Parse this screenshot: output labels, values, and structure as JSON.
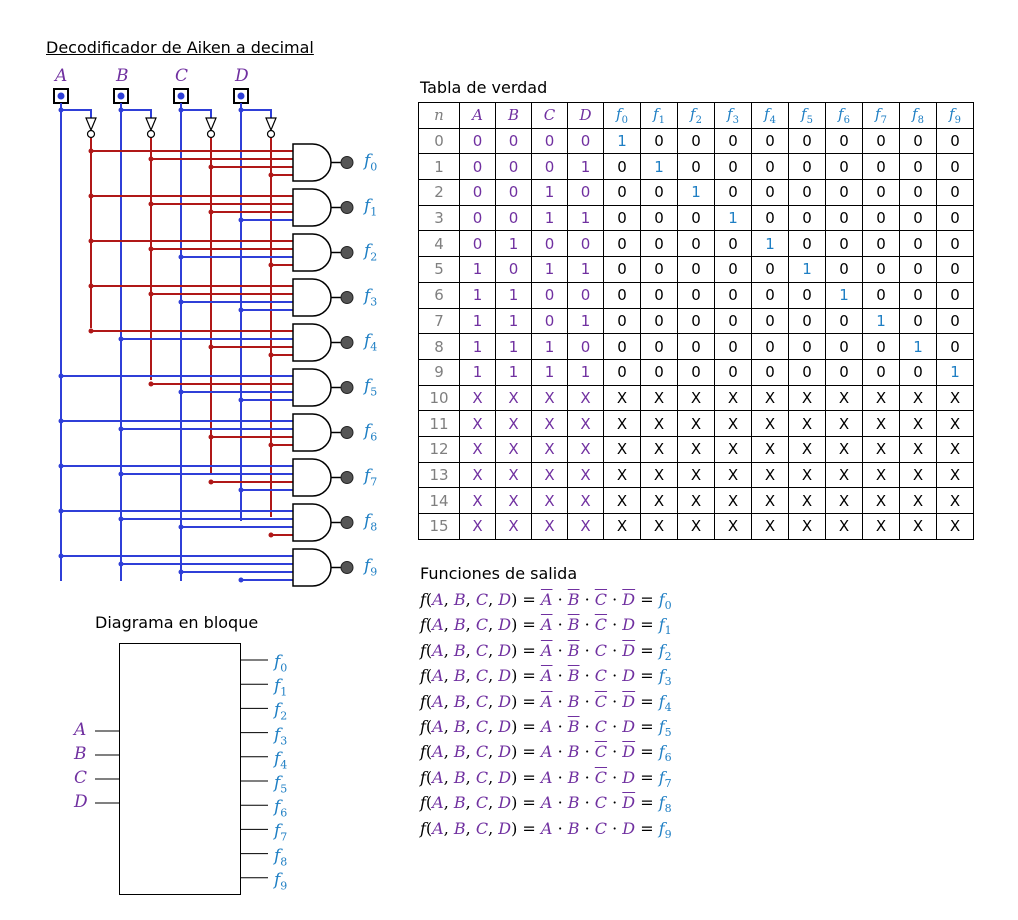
{
  "titles": {
    "circuit": "Decodificador de Aiken a decimal",
    "truth_table": "Tabla de verdad",
    "functions": "Funciones de salida",
    "block": "Diagrama en bloque"
  },
  "inputs": [
    "A",
    "B",
    "C",
    "D"
  ],
  "outputs": [
    "0",
    "1",
    "2",
    "3",
    "4",
    "5",
    "6",
    "7",
    "8",
    "9"
  ],
  "colors": {
    "input_wire": "#2f3fd8",
    "inverted_wire": "#b01818",
    "input_label": "#7030a0",
    "output_label": "#1f7fc4",
    "row_number": "#7f7f7f",
    "output_led": "#555555"
  },
  "icons": [
    "input-switch-icon",
    "not-gate-icon",
    "and-gate-icon",
    "output-led-icon"
  ],
  "truth_table": {
    "headers": [
      "n",
      "A",
      "B",
      "C",
      "D",
      "f0",
      "f1",
      "f2",
      "f3",
      "f4",
      "f5",
      "f6",
      "f7",
      "f8",
      "f9"
    ],
    "rows": [
      [
        "0",
        "0",
        "0",
        "0",
        "0",
        "1",
        "0",
        "0",
        "0",
        "0",
        "0",
        "0",
        "0",
        "0",
        "0"
      ],
      [
        "1",
        "0",
        "0",
        "0",
        "1",
        "0",
        "1",
        "0",
        "0",
        "0",
        "0",
        "0",
        "0",
        "0",
        "0"
      ],
      [
        "2",
        "0",
        "0",
        "1",
        "0",
        "0",
        "0",
        "1",
        "0",
        "0",
        "0",
        "0",
        "0",
        "0",
        "0"
      ],
      [
        "3",
        "0",
        "0",
        "1",
        "1",
        "0",
        "0",
        "0",
        "1",
        "0",
        "0",
        "0",
        "0",
        "0",
        "0"
      ],
      [
        "4",
        "0",
        "1",
        "0",
        "0",
        "0",
        "0",
        "0",
        "0",
        "1",
        "0",
        "0",
        "0",
        "0",
        "0"
      ],
      [
        "5",
        "1",
        "0",
        "1",
        "1",
        "0",
        "0",
        "0",
        "0",
        "0",
        "1",
        "0",
        "0",
        "0",
        "0"
      ],
      [
        "6",
        "1",
        "1",
        "0",
        "0",
        "0",
        "0",
        "0",
        "0",
        "0",
        "0",
        "1",
        "0",
        "0",
        "0"
      ],
      [
        "7",
        "1",
        "1",
        "0",
        "1",
        "0",
        "0",
        "0",
        "0",
        "0",
        "0",
        "0",
        "1",
        "0",
        "0"
      ],
      [
        "8",
        "1",
        "1",
        "1",
        "0",
        "0",
        "0",
        "0",
        "0",
        "0",
        "0",
        "0",
        "0",
        "1",
        "0"
      ],
      [
        "9",
        "1",
        "1",
        "1",
        "1",
        "0",
        "0",
        "0",
        "0",
        "0",
        "0",
        "0",
        "0",
        "0",
        "1"
      ],
      [
        "10",
        "X",
        "X",
        "X",
        "X",
        "X",
        "X",
        "X",
        "X",
        "X",
        "X",
        "X",
        "X",
        "X",
        "X"
      ],
      [
        "11",
        "X",
        "X",
        "X",
        "X",
        "X",
        "X",
        "X",
        "X",
        "X",
        "X",
        "X",
        "X",
        "X",
        "X"
      ],
      [
        "12",
        "X",
        "X",
        "X",
        "X",
        "X",
        "X",
        "X",
        "X",
        "X",
        "X",
        "X",
        "X",
        "X",
        "X"
      ],
      [
        "13",
        "X",
        "X",
        "X",
        "X",
        "X",
        "X",
        "X",
        "X",
        "X",
        "X",
        "X",
        "X",
        "X",
        "X"
      ],
      [
        "14",
        "X",
        "X",
        "X",
        "X",
        "X",
        "X",
        "X",
        "X",
        "X",
        "X",
        "X",
        "X",
        "X",
        "X"
      ],
      [
        "15",
        "X",
        "X",
        "X",
        "X",
        "X",
        "X",
        "X",
        "X",
        "X",
        "X",
        "X",
        "X",
        "X",
        "X"
      ]
    ]
  },
  "equations": {
    "lhs": "f(A, B, C, D) =",
    "terms": [
      {
        "negated": [
          true,
          true,
          true,
          true
        ],
        "output": "0"
      },
      {
        "negated": [
          true,
          true,
          true,
          false
        ],
        "output": "1"
      },
      {
        "negated": [
          true,
          true,
          false,
          true
        ],
        "output": "2"
      },
      {
        "negated": [
          true,
          true,
          false,
          false
        ],
        "output": "3"
      },
      {
        "negated": [
          true,
          false,
          true,
          true
        ],
        "output": "4"
      },
      {
        "negated": [
          false,
          true,
          false,
          false
        ],
        "output": "5"
      },
      {
        "negated": [
          false,
          false,
          true,
          true
        ],
        "output": "6"
      },
      {
        "negated": [
          false,
          false,
          true,
          false
        ],
        "output": "7"
      },
      {
        "negated": [
          false,
          false,
          false,
          true
        ],
        "output": "8"
      },
      {
        "negated": [
          false,
          false,
          false,
          false
        ],
        "output": "9"
      }
    ]
  }
}
